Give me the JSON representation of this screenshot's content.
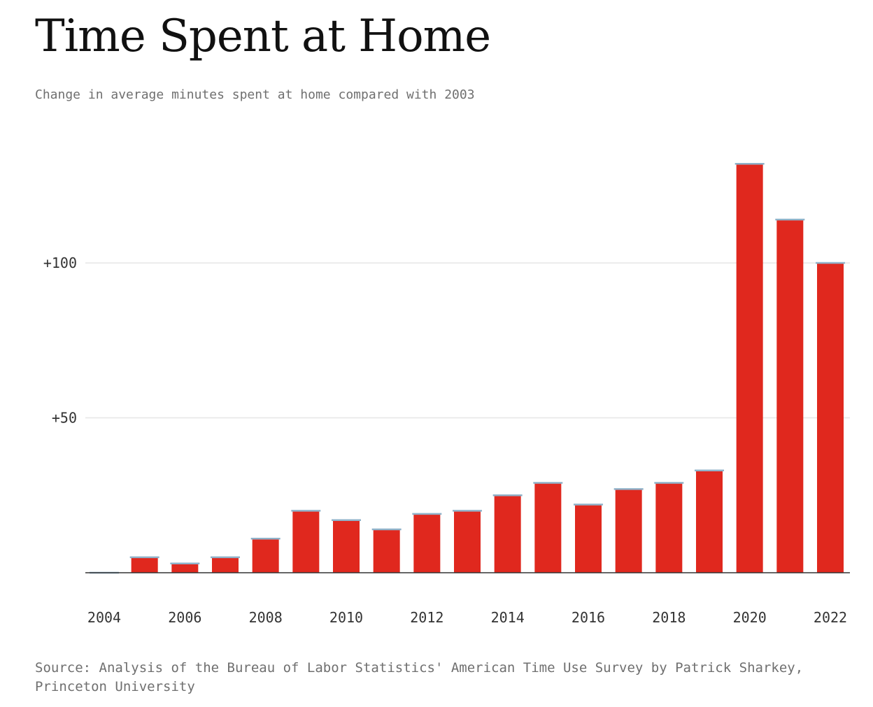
{
  "chart_data": {
    "type": "bar",
    "title": "Time Spent at Home",
    "subtitle": "Change in average minutes spent at home compared with 2003",
    "source": "Source: Analysis of the Bureau of Labor Statistics' American Time Use Survey by Patrick Sharkey, Princeton University",
    "x": [
      2004,
      2005,
      2006,
      2007,
      2008,
      2009,
      2010,
      2011,
      2012,
      2013,
      2014,
      2015,
      2016,
      2017,
      2018,
      2019,
      2020,
      2021,
      2022
    ],
    "values": [
      0,
      5,
      3,
      5,
      11,
      20,
      17,
      14,
      19,
      20,
      25,
      29,
      22,
      27,
      29,
      33,
      132,
      114,
      100
    ],
    "x_tick_labels": [
      "2004",
      "2006",
      "2008",
      "2010",
      "2012",
      "2014",
      "2016",
      "2018",
      "2020",
      "2022"
    ],
    "y_ticks": [
      50,
      100
    ],
    "y_tick_labels": [
      "+50",
      "+100"
    ],
    "ylim": [
      0,
      135
    ],
    "xlabel": "",
    "ylabel": "",
    "grid": true,
    "colors": {
      "bar": "#e0281e",
      "bar_cap": "#8fb2c9",
      "grid": "#e6e6e6",
      "axis": "#333333"
    }
  }
}
